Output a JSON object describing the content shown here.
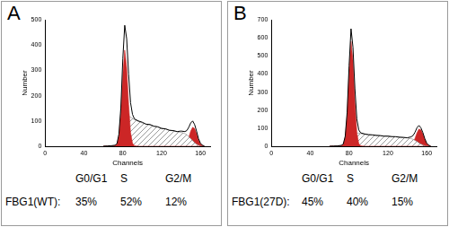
{
  "chart_data": [
    {
      "type": "line",
      "title": "A",
      "x_label": "Channels",
      "y_label": "Number",
      "x": [
        60,
        64,
        68,
        72,
        74,
        76,
        78,
        80,
        82,
        84,
        86,
        88,
        90,
        92,
        96,
        100,
        104,
        108,
        112,
        116,
        120,
        124,
        128,
        132,
        136,
        140,
        144,
        146,
        148,
        150,
        152,
        154,
        156,
        158,
        160,
        162,
        164
      ],
      "series": [
        {
          "type": "line",
          "color": "#000000",
          "values": [
            0,
            1,
            2,
            4,
            10,
            48,
            152,
            345,
            478,
            425,
            285,
            172,
            126,
            108,
            100,
            95,
            87,
            86,
            79,
            77,
            70,
            69,
            63,
            62,
            58,
            60,
            58,
            62,
            75,
            92,
            100,
            86,
            60,
            30,
            12,
            4,
            1
          ]
        },
        {
          "type": "area",
          "color": "#cc2626",
          "values": [
            0,
            0,
            0,
            2,
            8,
            40,
            130,
            280,
            380,
            310,
            165,
            55,
            12,
            2,
            0,
            0,
            0,
            0,
            0,
            0,
            0,
            0,
            0,
            0,
            0,
            0,
            0,
            0,
            0,
            0,
            0,
            0,
            0,
            0,
            0,
            0,
            0
          ]
        },
        {
          "type": "area",
          "color": "#808080",
          "line_style": "hatched",
          "values": [
            0,
            0,
            0,
            0,
            0,
            5,
            20,
            60,
            100,
            115,
            118,
            115,
            110,
            105,
            98,
            92,
            88,
            84,
            80,
            76,
            72,
            68,
            64,
            60,
            57,
            55,
            50,
            45,
            38,
            30,
            22,
            14,
            8,
            4,
            1,
            0,
            0
          ]
        },
        {
          "type": "area",
          "color": "#cc2626",
          "values": [
            0,
            0,
            0,
            0,
            0,
            0,
            0,
            0,
            0,
            0,
            0,
            0,
            0,
            0,
            0,
            0,
            0,
            0,
            0,
            0,
            0,
            0,
            0,
            0,
            0,
            0,
            5,
            15,
            35,
            60,
            75,
            70,
            50,
            25,
            10,
            3,
            0
          ]
        }
      ],
      "xlim": [
        0,
        170
      ],
      "xticks": [
        0,
        40,
        80,
        120,
        160
      ],
      "ylim": [
        0,
        500
      ],
      "yticks": [
        0,
        100,
        200,
        300,
        400,
        500
      ],
      "grid": false,
      "phases": {
        "names": [
          "G0/G1",
          "S",
          "G2/M"
        ],
        "sample": "FBG1(WT):",
        "labels": [
          "35%",
          "52%",
          "12%"
        ]
      }
    },
    {
      "type": "line",
      "title": "B",
      "x_label": "Channels",
      "y_label": "Number",
      "x": [
        60,
        64,
        68,
        72,
        74,
        76,
        78,
        80,
        82,
        84,
        86,
        88,
        90,
        92,
        96,
        100,
        104,
        108,
        112,
        116,
        120,
        124,
        128,
        132,
        136,
        140,
        144,
        146,
        148,
        150,
        152,
        154,
        156,
        158,
        160,
        162,
        164
      ],
      "series": [
        {
          "type": "line",
          "color": "#000000",
          "values": [
            0,
            1,
            2,
            5,
            12,
            55,
            188,
            445,
            650,
            548,
            318,
            150,
            90,
            74,
            68,
            64,
            63,
            60,
            59,
            56,
            56,
            53,
            53,
            50,
            49,
            47,
            52,
            60,
            78,
            103,
            115,
            102,
            76,
            42,
            17,
            6,
            1
          ]
        },
        {
          "type": "area",
          "color": "#cc2626",
          "values": [
            0,
            0,
            0,
            2,
            10,
            50,
            170,
            400,
            580,
            470,
            240,
            75,
            15,
            2,
            0,
            0,
            0,
            0,
            0,
            0,
            0,
            0,
            0,
            0,
            0,
            0,
            0,
            0,
            0,
            0,
            0,
            0,
            0,
            0,
            0,
            0,
            0
          ]
        },
        {
          "type": "area",
          "color": "#808080",
          "line_style": "hatched",
          "values": [
            0,
            0,
            0,
            0,
            0,
            3,
            15,
            40,
            65,
            75,
            76,
            74,
            72,
            70,
            67,
            64,
            62,
            60,
            58,
            56,
            55,
            54,
            52,
            50,
            48,
            46,
            42,
            38,
            32,
            26,
            18,
            12,
            7,
            3,
            1,
            0,
            0
          ]
        },
        {
          "type": "area",
          "color": "#cc2626",
          "values": [
            0,
            0,
            0,
            0,
            0,
            0,
            0,
            0,
            0,
            0,
            0,
            0,
            0,
            0,
            0,
            0,
            0,
            0,
            0,
            0,
            0,
            0,
            0,
            0,
            0,
            0,
            8,
            20,
            45,
            75,
            95,
            90,
            68,
            38,
            15,
            5,
            1
          ]
        }
      ],
      "xlim": [
        0,
        170
      ],
      "xticks": [
        0,
        40,
        80,
        120,
        160
      ],
      "ylim": [
        0,
        700
      ],
      "yticks": [
        0,
        100,
        200,
        300,
        400,
        500,
        600,
        700
      ],
      "grid": false,
      "phases": {
        "names": [
          "G0/G1",
          "S",
          "G2/M"
        ],
        "sample": "FBG1(27D):",
        "labels": [
          "45%",
          "40%",
          "15%"
        ]
      }
    }
  ]
}
